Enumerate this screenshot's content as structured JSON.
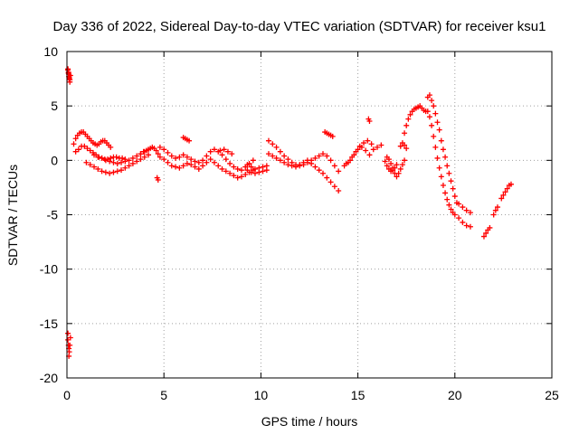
{
  "chart_data": {
    "type": "scatter",
    "title": "Day 336 of 2022, Sidereal Day-to-day VTEC variation (SDTVAR) for receiver ksu1",
    "xlabel": "GPS time / hours",
    "ylabel": "SDTVAR / TECUs",
    "xlim": [
      0,
      25
    ],
    "ylim": [
      -20,
      10
    ],
    "xticks": [
      0,
      5,
      10,
      15,
      20,
      25
    ],
    "yticks": [
      -20,
      -15,
      -10,
      -5,
      0,
      5,
      10
    ],
    "grid": true,
    "marker": "+",
    "color": "#ff0000",
    "series": [
      {
        "name": "SDTVAR",
        "x": [
          0.05,
          0.08,
          0.1,
          0.12,
          0.15,
          0.18,
          0.05,
          0.08,
          0.1,
          0.12,
          0.15,
          0.35,
          0.45,
          0.55,
          0.65,
          0.75,
          0.85,
          0.95,
          1.05,
          1.15,
          1.25,
          1.35,
          1.45,
          1.55,
          1.65,
          1.75,
          1.85,
          1.95,
          2.05,
          2.15,
          2.25,
          0.45,
          0.6,
          0.75,
          0.9,
          1.05,
          1.2,
          1.35,
          1.5,
          1.65,
          1.8,
          1.95,
          2.1,
          2.25,
          2.4,
          2.55,
          2.7,
          2.85,
          3.0,
          1.0,
          1.2,
          1.4,
          1.6,
          1.8,
          2.0,
          2.2,
          2.4,
          2.6,
          2.8,
          3.0,
          3.2,
          3.4,
          3.6,
          3.8,
          4.0,
          4.2,
          1.4,
          1.6,
          1.8,
          2.0,
          2.2,
          2.4,
          2.6,
          2.8,
          3.0,
          3.2,
          3.4,
          3.6,
          3.8,
          4.0,
          3.8,
          3.95,
          4.1,
          4.2,
          4.3,
          4.4,
          4.5,
          4.6,
          4.7,
          4.65,
          4.7,
          4.8,
          5.0,
          5.2,
          5.4,
          5.6,
          5.8,
          6.0,
          6.2,
          6.4,
          6.6,
          6.8,
          7.0,
          7.2,
          7.4,
          4.8,
          5.0,
          5.2,
          5.4,
          5.6,
          5.8,
          6.0,
          6.2,
          6.4,
          6.6,
          6.8,
          7.0,
          7.2,
          7.4,
          6.0,
          6.1,
          6.2,
          6.3,
          7.6,
          7.8,
          8.0,
          8.2,
          8.4,
          8.6,
          8.8,
          9.0,
          9.2,
          9.4,
          9.6,
          7.6,
          7.8,
          8.0,
          8.2,
          8.4,
          8.6,
          8.8,
          9.0,
          9.2,
          9.4,
          9.6,
          7.9,
          8.1,
          8.3,
          8.5,
          9.3,
          9.5,
          9.7,
          9.9,
          10.1,
          10.3,
          9.3,
          9.5,
          9.7,
          9.9,
          10.1,
          10.3,
          10.4,
          10.6,
          10.8,
          11.0,
          11.2,
          11.4,
          11.6,
          11.8,
          12.0,
          12.2,
          12.4,
          12.6,
          12.8,
          13.0,
          13.2,
          13.4,
          13.6,
          13.8,
          14.0,
          10.4,
          10.6,
          10.8,
          11.0,
          11.2,
          11.4,
          11.6,
          11.8,
          12.0,
          12.2,
          12.4,
          12.6,
          12.8,
          13.0,
          13.2,
          13.4,
          13.6,
          13.8,
          14.0,
          13.3,
          13.4,
          13.5,
          13.6,
          13.7,
          14.3,
          14.5,
          14.7,
          14.9,
          15.1,
          15.3,
          15.5,
          15.7,
          14.4,
          14.6,
          14.8,
          15.0,
          15.2,
          15.4,
          15.6,
          15.55,
          15.6,
          15.8,
          16.0,
          16.2,
          16.4,
          16.5,
          16.6,
          16.7,
          16.8,
          16.9,
          17.0,
          16.5,
          16.6,
          16.7,
          16.8,
          16.9,
          17.0,
          17.1,
          17.2,
          17.3,
          17.4,
          17.2,
          17.3,
          17.4,
          17.5,
          17.4,
          17.5,
          17.6,
          17.7,
          17.8,
          17.9,
          18.0,
          18.1,
          18.2,
          18.3,
          18.4,
          18.5,
          18.6,
          18.7,
          18.8,
          18.9,
          19.0,
          19.1,
          19.2,
          19.3,
          19.4,
          19.5,
          19.6,
          19.7,
          19.8,
          19.9,
          20.0,
          20.1,
          18.6,
          18.7,
          18.8,
          18.9,
          19.0,
          19.1,
          19.2,
          19.3,
          19.4,
          19.5,
          19.6,
          19.7,
          19.8,
          19.9,
          20.0,
          20.2,
          20.4,
          20.6,
          20.8,
          20.2,
          20.4,
          20.6,
          20.8,
          21.5,
          21.6,
          21.7,
          21.8,
          22.0,
          22.1,
          22.2,
          22.4,
          22.5,
          22.6,
          22.7,
          22.8,
          22.9,
          0.05,
          0.08,
          0.1,
          0.12,
          0.15,
          0.18,
          0.05,
          0.1
        ],
        "y": [
          8.3,
          8.1,
          7.9,
          7.6,
          7.4,
          7.8,
          8.4,
          8.0,
          7.7,
          7.5,
          7.2,
          1.5,
          2.0,
          2.3,
          2.5,
          2.6,
          2.6,
          2.4,
          2.2,
          2.0,
          1.8,
          1.6,
          1.5,
          1.4,
          1.5,
          1.7,
          1.8,
          1.8,
          1.6,
          1.4,
          1.2,
          0.8,
          1.0,
          1.3,
          1.3,
          1.1,
          0.9,
          0.7,
          0.5,
          0.3,
          0.2,
          0.1,
          0.1,
          0.2,
          0.3,
          0.3,
          0.2,
          0.2,
          0.1,
          -0.2,
          -0.4,
          -0.6,
          -0.8,
          -1.0,
          -1.1,
          -1.2,
          -1.1,
          -1.0,
          -0.9,
          -0.7,
          -0.5,
          -0.3,
          -0.1,
          0.1,
          0.3,
          0.5,
          0.5,
          0.3,
          0.2,
          0.0,
          -0.1,
          -0.2,
          -0.3,
          -0.2,
          -0.1,
          0.0,
          0.2,
          0.4,
          0.6,
          0.8,
          0.6,
          0.8,
          0.9,
          1.0,
          1.1,
          1.2,
          1.1,
          0.9,
          0.6,
          -1.6,
          -1.8,
          1.2,
          1.0,
          0.7,
          0.4,
          0.2,
          0.3,
          0.5,
          0.3,
          0.1,
          -0.1,
          -0.2,
          0.0,
          0.4,
          0.8,
          0.3,
          0.1,
          -0.2,
          -0.5,
          -0.6,
          -0.7,
          -0.5,
          -0.3,
          -0.4,
          -0.6,
          -0.8,
          -0.5,
          -0.2,
          0.1,
          2.1,
          2.0,
          1.9,
          1.8,
          1.0,
          0.8,
          0.5,
          0.1,
          -0.3,
          -0.6,
          -0.8,
          -0.9,
          -0.6,
          -0.3,
          0.0,
          -0.2,
          -0.5,
          -0.8,
          -1.0,
          -1.2,
          -1.4,
          -1.6,
          -1.5,
          -1.3,
          -1.1,
          -0.9,
          0.9,
          1.0,
          0.8,
          0.6,
          -0.4,
          -0.6,
          -0.8,
          -0.7,
          -0.6,
          -0.5,
          -0.9,
          -1.1,
          -1.2,
          -1.1,
          -1.0,
          -0.9,
          1.8,
          1.5,
          1.2,
          0.8,
          0.4,
          0.1,
          -0.2,
          -0.4,
          -0.5,
          -0.4,
          -0.2,
          0.0,
          0.2,
          0.4,
          0.6,
          0.4,
          0.0,
          -0.5,
          -1.0,
          0.6,
          0.4,
          0.2,
          0.0,
          -0.2,
          -0.4,
          -0.5,
          -0.6,
          -0.4,
          -0.2,
          0.0,
          -0.3,
          -0.6,
          -0.9,
          -1.2,
          -1.6,
          -2.0,
          -2.4,
          -2.8,
          2.6,
          2.5,
          2.4,
          2.3,
          2.2,
          -0.5,
          -0.2,
          0.3,
          0.8,
          1.3,
          1.6,
          1.8,
          1.5,
          -0.3,
          0.0,
          0.5,
          1.0,
          1.2,
          0.9,
          0.5,
          3.8,
          3.6,
          1.0,
          1.2,
          1.4,
          -0.1,
          -0.5,
          -0.8,
          -1.0,
          -0.9,
          -0.7,
          -0.4,
          0.3,
          0.1,
          -0.3,
          -0.7,
          -1.2,
          -1.5,
          -1.2,
          -0.8,
          -0.4,
          0.0,
          1.3,
          1.6,
          1.4,
          1.1,
          2.5,
          3.2,
          3.8,
          4.2,
          4.5,
          4.7,
          4.8,
          4.9,
          5.0,
          4.8,
          4.6,
          4.5,
          5.8,
          6.0,
          5.5,
          5.0,
          4.3,
          3.5,
          2.8,
          1.8,
          1.0,
          0.3,
          -0.5,
          -1.2,
          -1.9,
          -2.6,
          -3.3,
          -3.9,
          4.5,
          4.0,
          3.2,
          2.2,
          1.2,
          0.2,
          -0.7,
          -1.5,
          -2.3,
          -3.0,
          -3.6,
          -4.1,
          -4.5,
          -4.8,
          -5.0,
          -4.0,
          -4.3,
          -4.6,
          -4.8,
          -5.3,
          -5.7,
          -6.0,
          -6.1,
          -7.0,
          -6.7,
          -6.4,
          -6.2,
          -5.0,
          -4.6,
          -4.3,
          -3.5,
          -3.2,
          -2.9,
          -2.6,
          -2.3,
          -2.2,
          -16.5,
          -17.0,
          -17.3,
          -17.6,
          -17.0,
          -16.3,
          -15.9,
          -18.0
        ]
      }
    ]
  }
}
